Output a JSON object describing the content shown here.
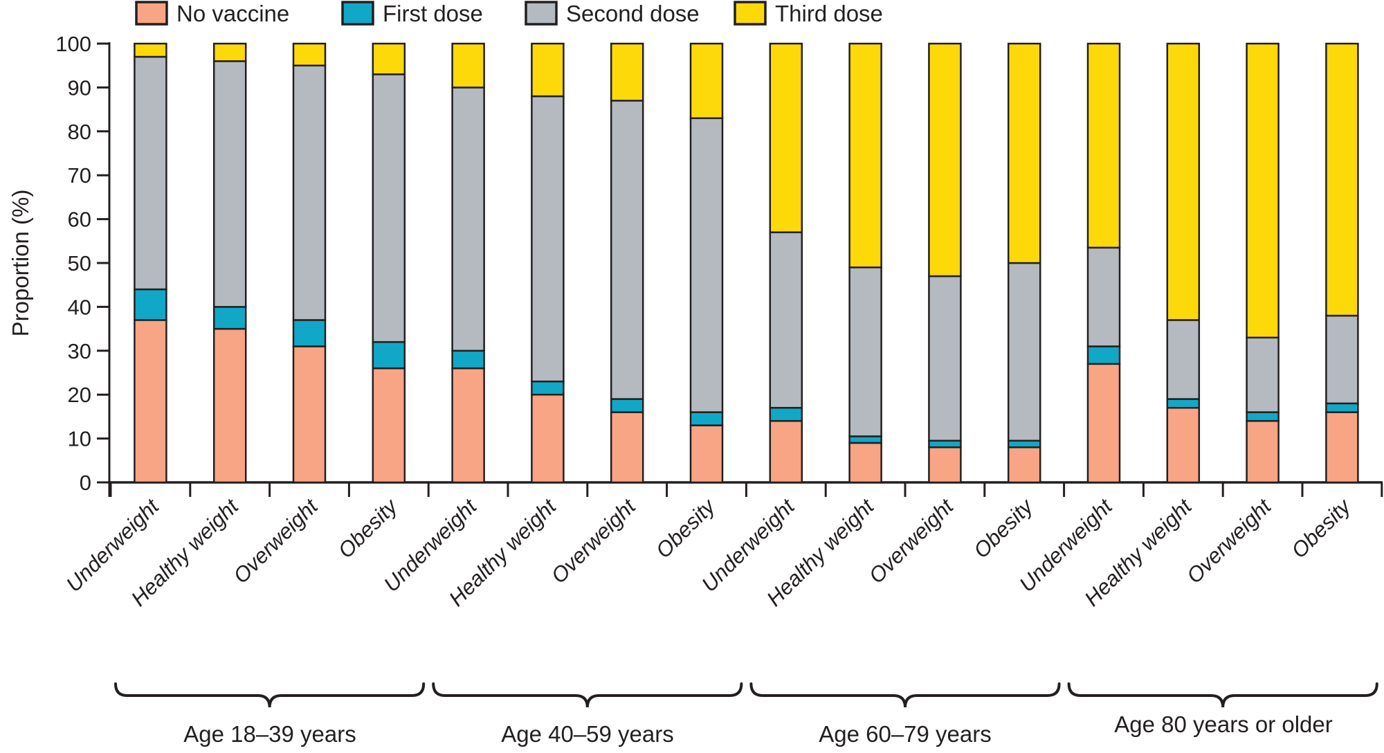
{
  "legend": {
    "items": [
      {
        "label": "No vaccine",
        "color": "#F8A585"
      },
      {
        "label": "First dose",
        "color": "#11A8C7"
      },
      {
        "label": "Second dose",
        "color": "#B5BAC1"
      },
      {
        "label": "Third dose",
        "color": "#FDD90A"
      }
    ]
  },
  "y_axis": {
    "title": "Proportion (%)",
    "ticks": [
      0,
      10,
      20,
      30,
      40,
      50,
      60,
      70,
      80,
      90,
      100
    ]
  },
  "groups": [
    {
      "label": "Age 18–39 years"
    },
    {
      "label": "Age 40–59 years"
    },
    {
      "label": "Age 60–79 years"
    },
    {
      "label": "Age 80 years or older"
    }
  ],
  "colors": {
    "axis": "#231F20",
    "bar_outline": "#231F20",
    "background": "#ffffff"
  },
  "chart_data": {
    "type": "bar",
    "stacked": true,
    "title": "",
    "xlabel": "",
    "ylabel": "Proportion (%)",
    "ylim": [
      0,
      100
    ],
    "grid": false,
    "legend_position": "top",
    "group_labels": [
      "Age 18–39 years",
      "Age 40–59 years",
      "Age 60–79 years",
      "Age 80 years or older"
    ],
    "categories": [
      "Underweight",
      "Healthy weight",
      "Overweight",
      "Obesity",
      "Underweight",
      "Healthy weight",
      "Overweight",
      "Obesity",
      "Underweight",
      "Healthy weight",
      "Overweight",
      "Obesity",
      "Underweight",
      "Healthy weight",
      "Overweight",
      "Obesity"
    ],
    "series": [
      {
        "name": "No vaccine",
        "color": "#F8A585",
        "values": [
          37,
          35,
          31,
          26,
          26,
          20,
          16,
          13,
          14,
          9,
          8,
          8,
          27,
          17,
          14,
          16
        ]
      },
      {
        "name": "First dose",
        "color": "#11A8C7",
        "values": [
          7,
          5,
          6,
          6,
          4,
          3,
          3,
          3,
          3,
          1.5,
          1.5,
          1.5,
          4,
          2,
          2,
          2
        ]
      },
      {
        "name": "Second dose",
        "color": "#B5BAC1",
        "values": [
          53,
          56,
          58,
          61,
          60,
          65,
          68,
          67,
          40,
          38.5,
          37.5,
          40.5,
          22.5,
          18,
          17,
          20
        ]
      },
      {
        "name": "Third dose",
        "color": "#FDD90A",
        "values": [
          3,
          4,
          5,
          7,
          10,
          12,
          13,
          17,
          43,
          51,
          53,
          50,
          46.5,
          63,
          67,
          62
        ]
      }
    ]
  }
}
